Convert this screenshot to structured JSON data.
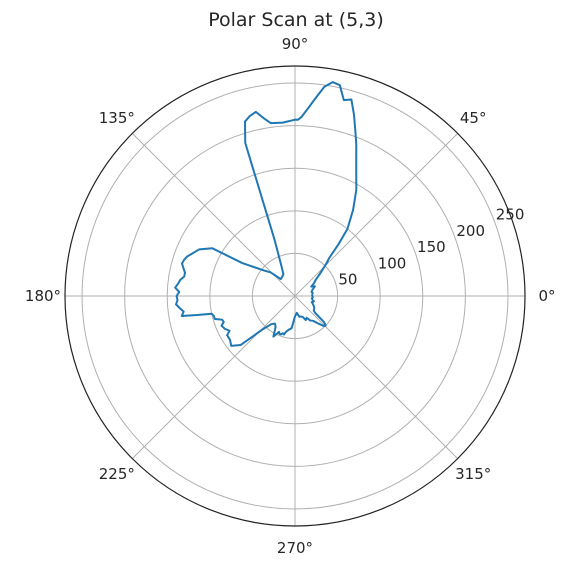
{
  "chart_data": {
    "type": "line",
    "projection": "polar",
    "title": "Polar Scan at (5,3)",
    "theta_unit": "degrees",
    "theta_ticks": [
      "0°",
      "45°",
      "90°",
      "135°",
      "180°",
      "225°",
      "270°",
      "315°"
    ],
    "theta_tick_values": [
      0,
      45,
      90,
      135,
      180,
      225,
      270,
      315
    ],
    "r_ticks": [
      50,
      100,
      150,
      200,
      250
    ],
    "rlim": [
      0,
      270
    ],
    "grid": true,
    "line_color": "#1f77b4",
    "series": [
      {
        "theta": [
          0,
          10,
          14,
          20,
          26,
          30,
          34,
          38,
          42,
          46,
          48,
          50,
          52,
          56,
          60,
          64,
          68,
          70,
          72,
          74,
          76,
          78,
          80,
          82,
          84,
          86,
          88,
          89,
          90,
          94,
          98,
          100,
          102,
          104,
          106,
          108,
          110,
          114,
          118,
          124,
          130,
          136,
          140,
          148,
          150,
          154,
          160,
          162,
          164,
          166,
          168,
          170,
          172,
          174,
          176,
          178,
          180,
          182,
          184,
          186,
          188,
          190,
          191,
          192,
          194,
          196,
          198,
          200,
          202,
          205,
          208,
          210,
          214,
          218,
          222,
          226,
          230,
          234,
          238,
          242,
          244,
          246,
          248,
          250,
          252,
          254,
          256,
          260,
          264,
          270,
          276,
          282,
          286,
          290,
          294,
          298,
          302,
          306,
          310,
          314,
          316,
          318,
          320,
          322,
          326,
          330,
          336,
          340,
          344,
          348,
          352,
          356,
          0
        ],
        "r": [
          20,
          21,
          20,
          22,
          26,
          22,
          27,
          31,
          40,
          53,
          60,
          80,
          100,
          122,
          144,
          164,
          192,
          207,
          224,
          240,
          237,
          253,
          255,
          248,
          234,
          221,
          210,
          207,
          207,
          204,
          205,
          212,
          221,
          218,
          213,
          189,
          70,
          40,
          29,
          27,
          26,
          40,
          46,
          73,
          112,
          125,
          135,
          137,
          138,
          135,
          132,
          132,
          136,
          138,
          141,
          136,
          139,
          138,
          140,
          136,
          132,
          135,
          117,
          100,
          98,
          98,
          90,
          89,
          93,
          91,
          87,
          92,
          92,
          95,
          86,
          54,
          43,
          40,
          43,
          54,
          50,
          46,
          48,
          48,
          46,
          47,
          43,
          40,
          38,
          24,
          20,
          25,
          25,
          26,
          31,
          29,
          34,
          36,
          42,
          49,
          50,
          46,
          31,
          28,
          27,
          26,
          23,
          21,
          23,
          21,
          20,
          21,
          20
        ]
      }
    ]
  }
}
